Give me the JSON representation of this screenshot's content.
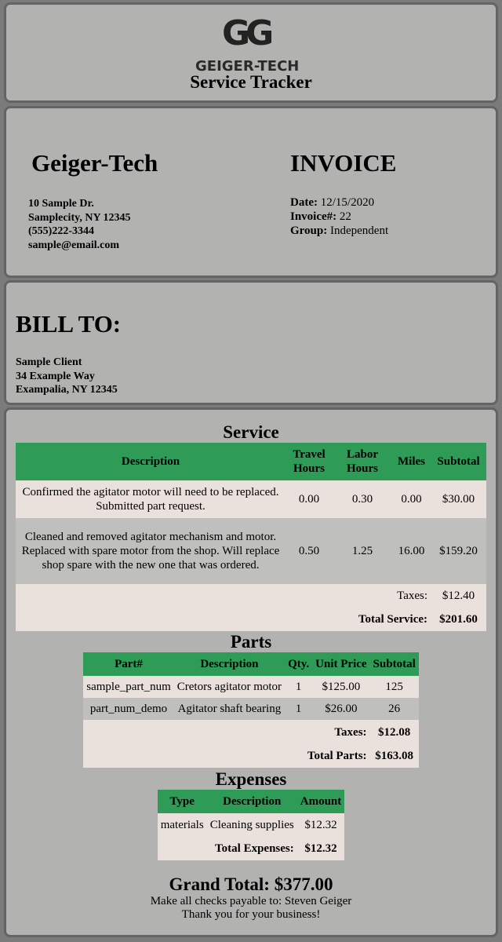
{
  "header": {
    "logo_text": "GEIGER-TECH",
    "app_title": "Service Tracker"
  },
  "company": {
    "name": "Geiger-Tech",
    "address": [
      "10 Sample Dr.",
      "Samplecity, NY 12345",
      "(555)222-3344",
      "sample@email.com"
    ]
  },
  "invoice": {
    "title": "INVOICE",
    "date_label": "Date:",
    "date": "12/15/2020",
    "number_label": "Invoice#:",
    "number": "22",
    "group_label": "Group:",
    "group": "Independent"
  },
  "bill_to": {
    "title": "BILL TO:",
    "lines": [
      "Sample Client",
      "34 Example Way",
      "Exampalia, NY 12345"
    ]
  },
  "service": {
    "title": "Service",
    "headers": [
      "Description",
      "Travel Hours",
      "Labor Hours",
      "Miles",
      "Subtotal"
    ],
    "rows": [
      [
        "Confirmed the agitator motor will need to be replaced. Submitted part request.",
        "0.00",
        "0.30",
        "0.00",
        "$30.00"
      ],
      [
        "Cleaned and removed agitator mechanism and motor. Replaced with spare motor from the shop. Will replace shop spare with the new one that was ordered.",
        "0.50",
        "1.25",
        "16.00",
        "$159.20"
      ]
    ],
    "taxes_label": "Taxes:",
    "taxes": "$12.40",
    "total_label": "Total Service:",
    "total": "$201.60"
  },
  "parts": {
    "title": "Parts",
    "headers": [
      "Part#",
      "Description",
      "Qty.",
      "Unit Price",
      "Subtotal"
    ],
    "rows": [
      [
        "sample_part_num",
        "Cretors agitator motor",
        "1",
        "$125.00",
        "125"
      ],
      [
        "part_num_demo",
        "Agitator shaft bearing",
        "1",
        "$26.00",
        "26"
      ]
    ],
    "taxes_label": "Taxes:",
    "taxes": "$12.08",
    "total_label": "Total Parts:",
    "total": "$163.08"
  },
  "expenses": {
    "title": "Expenses",
    "headers": [
      "Type",
      "Description",
      "Amount"
    ],
    "rows": [
      [
        "materials",
        "Cleaning supplies",
        "$12.32"
      ]
    ],
    "total_label": "Total Expenses:",
    "total": "$12.32"
  },
  "footer": {
    "grand_total": "Grand Total: $377.00",
    "checks": "Make all checks payable to: Steven Geiger",
    "thanks": "Thank you for your business!"
  },
  "colors": {
    "header_green": "#2e9c57",
    "panel": "#b2b2b0",
    "row_light": "#ebe1dc",
    "row_dark": "#bfbfbd"
  }
}
